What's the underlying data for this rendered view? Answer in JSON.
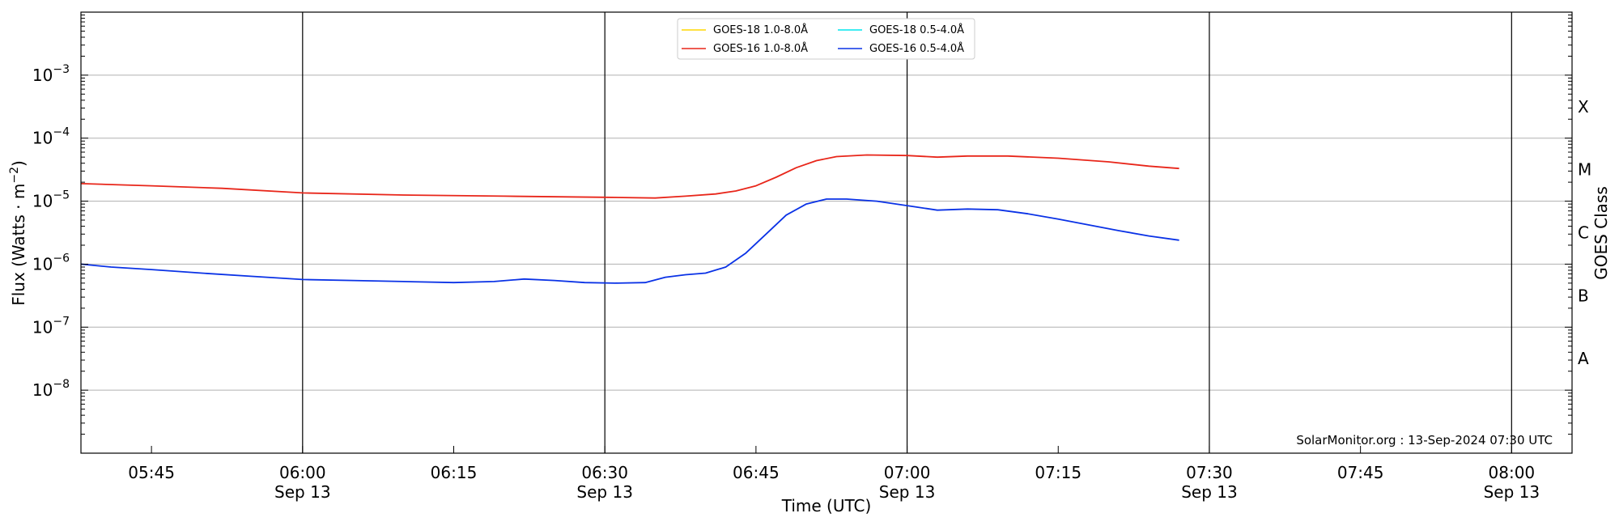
{
  "chart_data": {
    "type": "line",
    "xlabel": "Time (UTC)",
    "ylabel": "Flux (Watts · m",
    "ylabel_sup": "−2",
    "ylabel_suffix": ")",
    "right_label": "GOES Class",
    "y_scale": "log",
    "xlim": [
      "05:38",
      "08:06"
    ],
    "ylim_exp": [
      -9,
      -2
    ],
    "x_ticks": [
      {
        "time": "05:45",
        "label": "05:45",
        "sub": ""
      },
      {
        "time": "06:00",
        "label": "06:00",
        "sub": "Sep 13"
      },
      {
        "time": "06:15",
        "label": "06:15",
        "sub": ""
      },
      {
        "time": "06:30",
        "label": "06:30",
        "sub": "Sep 13"
      },
      {
        "time": "06:45",
        "label": "06:45",
        "sub": ""
      },
      {
        "time": "07:00",
        "label": "07:00",
        "sub": "Sep 13"
      },
      {
        "time": "07:15",
        "label": "07:15",
        "sub": ""
      },
      {
        "time": "07:30",
        "label": "07:30",
        "sub": "Sep 13"
      },
      {
        "time": "07:45",
        "label": "07:45",
        "sub": ""
      },
      {
        "time": "08:00",
        "label": "08:00",
        "sub": "Sep 13"
      }
    ],
    "vertical_lines": [
      "06:00",
      "06:30",
      "07:00",
      "07:30",
      "08:00"
    ],
    "y_ticks": [
      {
        "exp": -3,
        "label": "10",
        "sup": "−3"
      },
      {
        "exp": -4,
        "label": "10",
        "sup": "−4"
      },
      {
        "exp": -5,
        "label": "10",
        "sup": "−5"
      },
      {
        "exp": -6,
        "label": "10",
        "sup": "−6"
      },
      {
        "exp": -7,
        "label": "10",
        "sup": "−7"
      },
      {
        "exp": -8,
        "label": "10",
        "sup": "−8"
      }
    ],
    "goes_classes": [
      {
        "label": "X",
        "exp": -3.5
      },
      {
        "label": "M",
        "exp": -4.5
      },
      {
        "label": "C",
        "exp": -5.5
      },
      {
        "label": "B",
        "exp": -6.5
      },
      {
        "label": "A",
        "exp": -7.5
      }
    ],
    "grid": true,
    "legend_position": "top-center",
    "watermark": "SolarMonitor.org : 13-Sep-2024 07:30 UTC",
    "series": [
      {
        "name": "GOES-18 1.0-8.0Å",
        "color": "#ffd700",
        "points": []
      },
      {
        "name": "GOES-18 0.5-4.0Å",
        "color": "#00e5ee",
        "points": []
      },
      {
        "name": "GOES-16 1.0-8.0Å",
        "color": "#e8261a",
        "points": [
          [
            "05:38",
            1.9e-05
          ],
          [
            "05:45",
            1.75e-05
          ],
          [
            "05:52",
            1.6e-05
          ],
          [
            "06:00",
            1.35e-05
          ],
          [
            "06:10",
            1.25e-05
          ],
          [
            "06:20",
            1.2e-05
          ],
          [
            "06:30",
            1.15e-05
          ],
          [
            "06:35",
            1.12e-05
          ],
          [
            "06:38",
            1.2e-05
          ],
          [
            "06:41",
            1.3e-05
          ],
          [
            "06:43",
            1.45e-05
          ],
          [
            "06:45",
            1.75e-05
          ],
          [
            "06:47",
            2.4e-05
          ],
          [
            "06:49",
            3.4e-05
          ],
          [
            "06:51",
            4.4e-05
          ],
          [
            "06:53",
            5.1e-05
          ],
          [
            "06:56",
            5.4e-05
          ],
          [
            "07:00",
            5.3e-05
          ],
          [
            "07:03",
            5e-05
          ],
          [
            "07:06",
            5.2e-05
          ],
          [
            "07:10",
            5.2e-05
          ],
          [
            "07:15",
            4.8e-05
          ],
          [
            "07:20",
            4.2e-05
          ],
          [
            "07:24",
            3.6e-05
          ],
          [
            "07:27",
            3.3e-05
          ]
        ]
      },
      {
        "name": "GOES-16 0.5-4.0Å",
        "color": "#0a32e6",
        "points": [
          [
            "05:38",
            1e-06
          ],
          [
            "05:41",
            9e-07
          ],
          [
            "05:45",
            8.2e-07
          ],
          [
            "05:50",
            7.2e-07
          ],
          [
            "05:55",
            6.4e-07
          ],
          [
            "06:00",
            5.7e-07
          ],
          [
            "06:05",
            5.5e-07
          ],
          [
            "06:10",
            5.3e-07
          ],
          [
            "06:15",
            5.1e-07
          ],
          [
            "06:19",
            5.3e-07
          ],
          [
            "06:22",
            5.8e-07
          ],
          [
            "06:25",
            5.5e-07
          ],
          [
            "06:28",
            5.1e-07
          ],
          [
            "06:31",
            5e-07
          ],
          [
            "06:34",
            5.1e-07
          ],
          [
            "06:36",
            6.2e-07
          ],
          [
            "06:38",
            6.8e-07
          ],
          [
            "06:40",
            7.2e-07
          ],
          [
            "06:42",
            9e-07
          ],
          [
            "06:44",
            1.5e-06
          ],
          [
            "06:46",
            3e-06
          ],
          [
            "06:48",
            6e-06
          ],
          [
            "06:50",
            9e-06
          ],
          [
            "06:52",
            1.08e-05
          ],
          [
            "06:54",
            1.08e-05
          ],
          [
            "06:57",
            1e-05
          ],
          [
            "07:00",
            8.5e-06
          ],
          [
            "07:03",
            7.2e-06
          ],
          [
            "07:06",
            7.5e-06
          ],
          [
            "07:09",
            7.3e-06
          ],
          [
            "07:12",
            6.3e-06
          ],
          [
            "07:15",
            5.2e-06
          ],
          [
            "07:18",
            4.2e-06
          ],
          [
            "07:21",
            3.4e-06
          ],
          [
            "07:24",
            2.8e-06
          ],
          [
            "07:27",
            2.4e-06
          ]
        ]
      }
    ]
  }
}
